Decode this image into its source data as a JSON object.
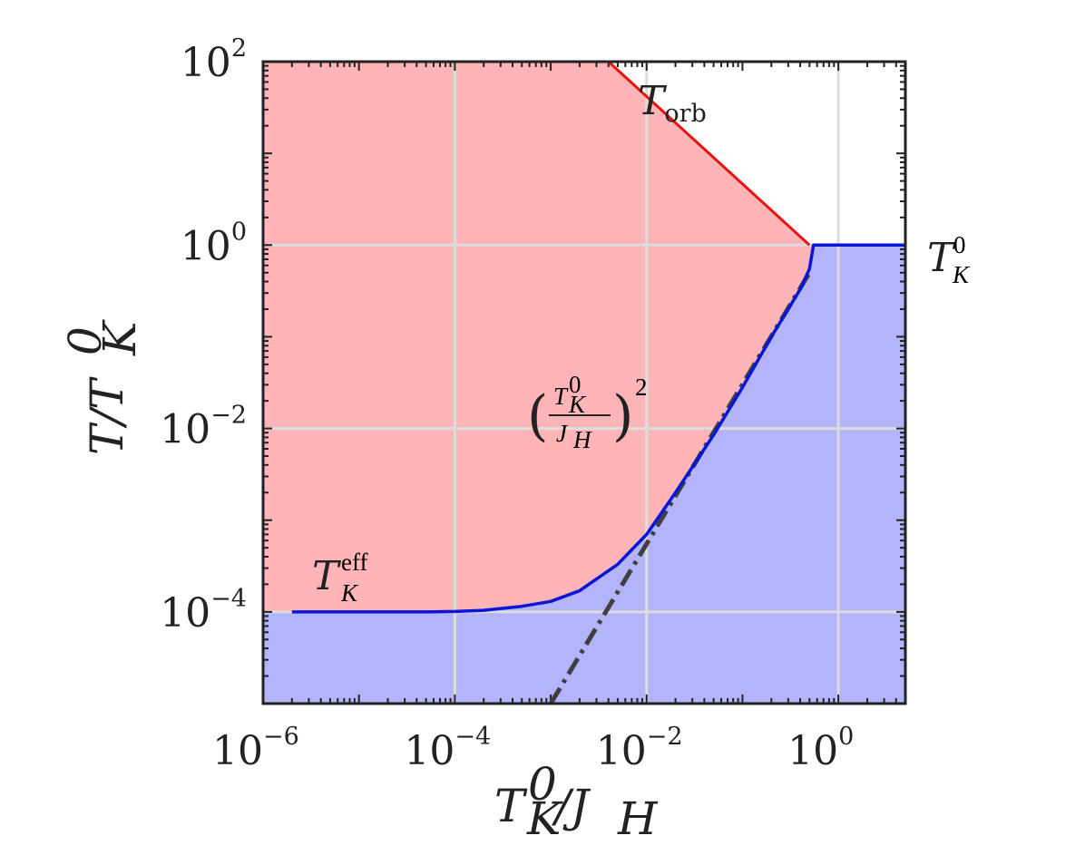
{
  "chart_data": {
    "type": "area",
    "xscale": "log",
    "yscale": "log",
    "xlim": [
      1e-06,
      5
    ],
    "ylim": [
      1e-05,
      100
    ],
    "grid": true,
    "xlabel": {
      "base": "T",
      "sup": "0",
      "sub": "K",
      "tail": "/J",
      "tail_sub": "H"
    },
    "ylabel": {
      "base": "T/T",
      "sup": "0",
      "sub": "K"
    },
    "xticks": [
      {
        "value": 1e-06,
        "base": "10",
        "exp": "−6"
      },
      {
        "value": 0.0001,
        "base": "10",
        "exp": "−4"
      },
      {
        "value": 0.01,
        "base": "10",
        "exp": "−2"
      },
      {
        "value": 1,
        "base": "10",
        "exp": "0"
      }
    ],
    "yticks": [
      {
        "value": 0.0001,
        "base": "10",
        "exp": "−4"
      },
      {
        "value": 0.01,
        "base": "10",
        "exp": "−2"
      },
      {
        "value": 1,
        "base": "10",
        "exp": "0"
      },
      {
        "value": 100,
        "base": "10",
        "exp": "2"
      }
    ],
    "colors": {
      "red_region": "#ffb4b8",
      "blue_region": "#b3b4fb",
      "blue_line": "#0a16d6",
      "red_line": "#e81313",
      "dashed_line": "#3f3f3f",
      "grid": "#dcdcdc",
      "frame": "#222222"
    },
    "series": [
      {
        "key": "tk_eff_curve",
        "x": [
          2e-06,
          4e-06,
          1e-05,
          2e-05,
          5e-05,
          0.0001,
          0.0002,
          0.0005,
          0.001,
          0.002,
          0.005,
          0.01,
          0.02,
          0.05,
          0.1,
          0.2,
          0.4,
          0.5,
          0.55,
          5
        ],
        "y": [
          0.0001,
          0.0001,
          0.0001,
          0.0001,
          0.0001,
          0.000101,
          0.000104,
          0.000115,
          0.00013,
          0.00017,
          0.00033,
          0.0007,
          0.002,
          0.0085,
          0.028,
          0.1,
          0.33,
          0.55,
          1,
          1
        ]
      },
      {
        "key": "t_orb_line",
        "x": [
          0.004,
          0.5
        ],
        "y": [
          100,
          1
        ]
      },
      {
        "key": "power_law_dashed",
        "x": [
          0.001,
          0.5
        ],
        "y": [
          1e-05,
          0.5
        ]
      }
    ],
    "annotations": {
      "t_orb": {
        "base": "T",
        "sub": "orb"
      },
      "tk0": {
        "base": "T",
        "sup": "0",
        "sub": "K"
      },
      "tk_eff": {
        "base": "T",
        "sup": "eff",
        "sub": "K"
      },
      "power_law": {
        "num_base": "T",
        "num_sup": "0",
        "num_sub": "K",
        "den_base": "J",
        "den_sub": "H",
        "exp": "2"
      }
    }
  }
}
